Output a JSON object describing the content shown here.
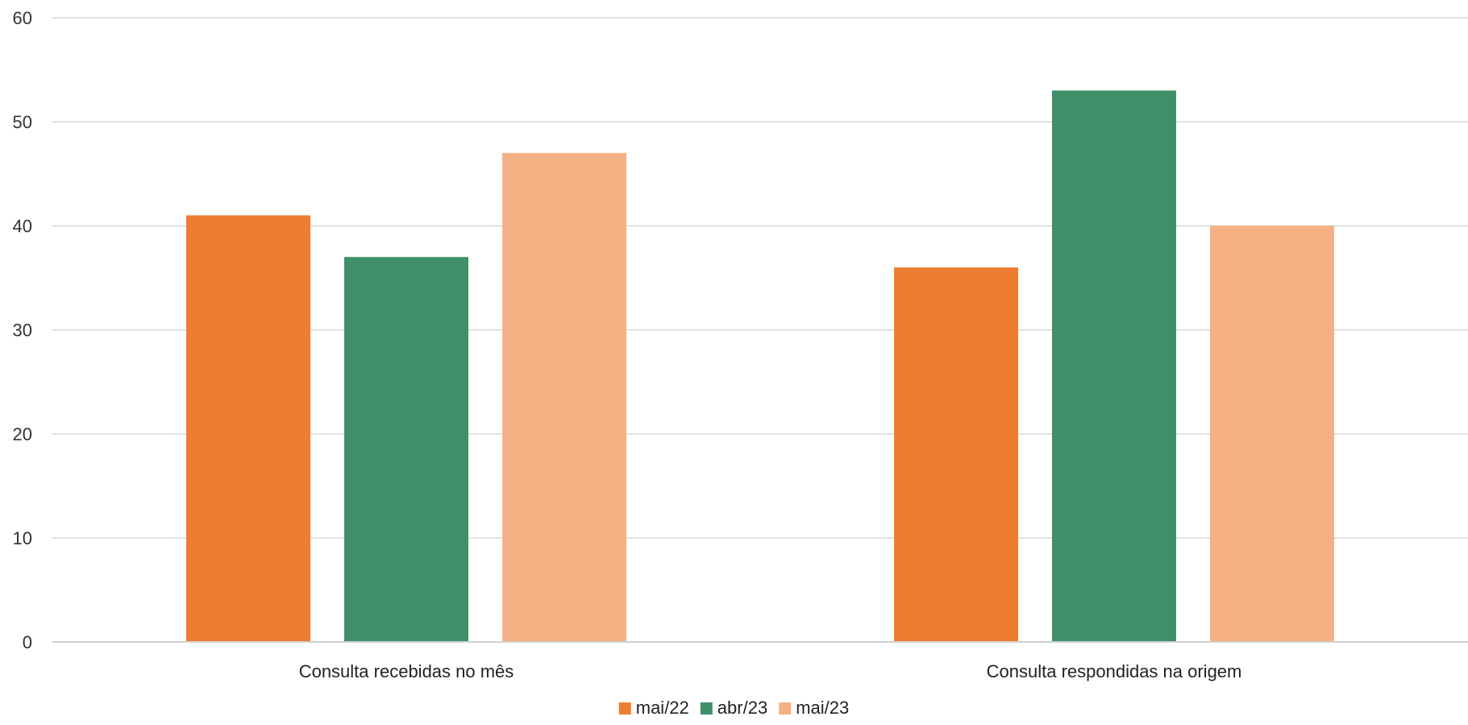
{
  "chart_data": {
    "type": "bar",
    "title": "",
    "xlabel": "",
    "ylabel": "",
    "categories": [
      "Consulta recebidas no mês",
      "Consulta respondidas na origem"
    ],
    "series": [
      {
        "name": "mai/22",
        "values": [
          41,
          36
        ],
        "color": "#ED7D31"
      },
      {
        "name": "abr/23",
        "values": [
          37,
          53
        ],
        "color": "#3F8F69"
      },
      {
        "name": "mai/23",
        "values": [
          47,
          40
        ],
        "color": "#F4B183"
      }
    ],
    "ylim": [
      0,
      60
    ],
    "yticks": [
      "0",
      "10",
      "20",
      "30",
      "40",
      "50",
      "60"
    ],
    "grid": true,
    "legend": "bottom-center"
  }
}
